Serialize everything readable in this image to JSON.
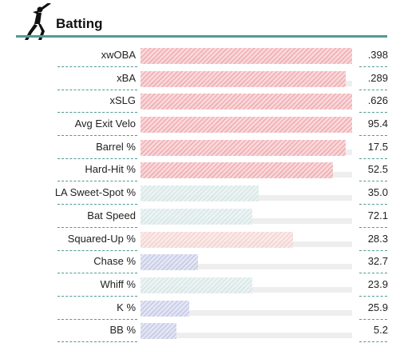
{
  "section": {
    "title": "Batting",
    "icon": "batter-icon",
    "accent_color": "#4f9a96"
  },
  "stats": [
    {
      "label": "xwOBA",
      "value": ".398",
      "fill": 1.0,
      "color": "#f2a9ad"
    },
    {
      "label": "xBA",
      "value": ".289",
      "fill": 0.97,
      "color": "#f2a9ad"
    },
    {
      "label": "xSLG",
      "value": ".626",
      "fill": 1.0,
      "color": "#f2a9ad"
    },
    {
      "label": "Avg Exit Velo",
      "value": "95.4",
      "fill": 1.0,
      "color": "#f2a9ad"
    },
    {
      "label": "Barrel %",
      "value": "17.5",
      "fill": 0.97,
      "color": "#f2a9ad"
    },
    {
      "label": "Hard-Hit %",
      "value": "52.5",
      "fill": 0.91,
      "color": "#f2a9ad"
    },
    {
      "label": "LA Sweet-Spot %",
      "value": "35.0",
      "fill": 0.56,
      "color": "#d6e6e6"
    },
    {
      "label": "Bat Speed",
      "value": "72.1",
      "fill": 0.53,
      "color": "#d6e6e6"
    },
    {
      "label": "Squared-Up %",
      "value": "28.3",
      "fill": 0.72,
      "color": "#f5d2ce"
    },
    {
      "label": "Chase %",
      "value": "32.7",
      "fill": 0.27,
      "color": "#c3c8e6"
    },
    {
      "label": "Whiff %",
      "value": "23.9",
      "fill": 0.53,
      "color": "#d6e6e6"
    },
    {
      "label": "K %",
      "value": "25.9",
      "fill": 0.23,
      "color": "#c3c8e6"
    },
    {
      "label": "BB %",
      "value": "5.2",
      "fill": 0.17,
      "color": "#c3c8e6"
    }
  ]
}
